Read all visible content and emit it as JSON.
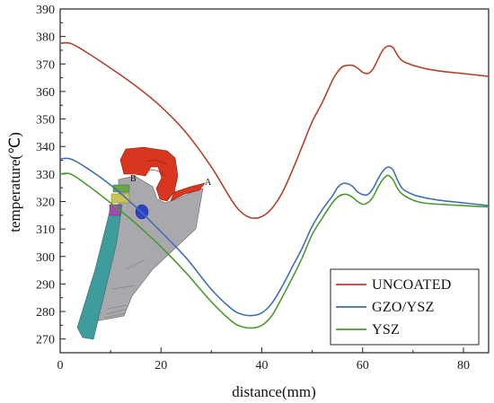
{
  "chart_data": {
    "type": "line",
    "title": "",
    "xlabel": "distance(mm)",
    "ylabel": "temperature(℃)",
    "xlim": [
      0,
      85
    ],
    "ylim": [
      265,
      390
    ],
    "xticks": [
      0,
      20,
      40,
      60,
      80
    ],
    "yticks": [
      270,
      280,
      290,
      300,
      310,
      320,
      330,
      340,
      350,
      360,
      370,
      380,
      390
    ],
    "grid": false,
    "legend_position": "bottom-right",
    "series": [
      {
        "name": "UNCOATED",
        "color": "#b5402a",
        "x": [
          0,
          2,
          5,
          10,
          15,
          20,
          25,
          30,
          34,
          36,
          38,
          40,
          42,
          44,
          46,
          48,
          50,
          52,
          54,
          55,
          56,
          57,
          58,
          59,
          60,
          61,
          62,
          63,
          64,
          65,
          66,
          67,
          68,
          70,
          72,
          75,
          80,
          85
        ],
        "y": [
          377.5,
          377.5,
          374.5,
          368.5,
          362,
          354.5,
          345,
          332.5,
          320.5,
          316,
          314,
          314.5,
          317.5,
          323,
          331,
          340,
          349,
          356,
          364,
          367,
          369,
          369.5,
          369.5,
          368.5,
          367,
          366.5,
          368,
          371.5,
          375,
          376.5,
          376,
          373,
          371,
          369.5,
          368.5,
          367.5,
          366.5,
          365.5
        ]
      },
      {
        "name": "GZO/YSZ",
        "color": "#3f6fb5",
        "x": [
          0,
          2,
          5,
          10,
          15,
          20,
          25,
          30,
          34,
          36,
          38,
          40,
          42,
          44,
          46,
          48,
          50,
          52,
          54,
          55,
          56,
          57,
          58,
          59,
          60,
          61,
          62,
          63,
          64,
          65,
          66,
          67,
          68,
          70,
          72,
          75,
          80,
          85
        ],
        "y": [
          335.5,
          335.5,
          332.5,
          326,
          318,
          309,
          299.5,
          288,
          281,
          279,
          278.5,
          279.5,
          283,
          289,
          296,
          303,
          311,
          317,
          322,
          325,
          326.5,
          326.5,
          325.5,
          323.5,
          322.5,
          322.5,
          324.5,
          328,
          331,
          332.5,
          331.5,
          327.5,
          324.5,
          322.5,
          321.5,
          320.5,
          319.5,
          318.5
        ]
      },
      {
        "name": "YSZ",
        "color": "#4a9a2e",
        "x": [
          0,
          2,
          5,
          10,
          15,
          20,
          25,
          30,
          34,
          36,
          38,
          40,
          42,
          44,
          46,
          48,
          50,
          52,
          54,
          55,
          56,
          57,
          58,
          59,
          60,
          61,
          62,
          63,
          64,
          65,
          66,
          67,
          68,
          70,
          72,
          75,
          80,
          85
        ],
        "y": [
          330,
          330,
          326.5,
          319.5,
          312,
          303.5,
          294,
          283.5,
          276.5,
          274.5,
          274,
          275,
          278.5,
          285,
          292,
          299.5,
          308,
          314,
          319.5,
          321.5,
          322.5,
          322.5,
          321.5,
          320,
          319,
          319.5,
          321.5,
          325,
          328,
          329.5,
          328,
          324.5,
          322.5,
          320.5,
          319.5,
          319,
          318.5,
          318
        ]
      }
    ],
    "annotations": [
      "A",
      "B"
    ]
  }
}
